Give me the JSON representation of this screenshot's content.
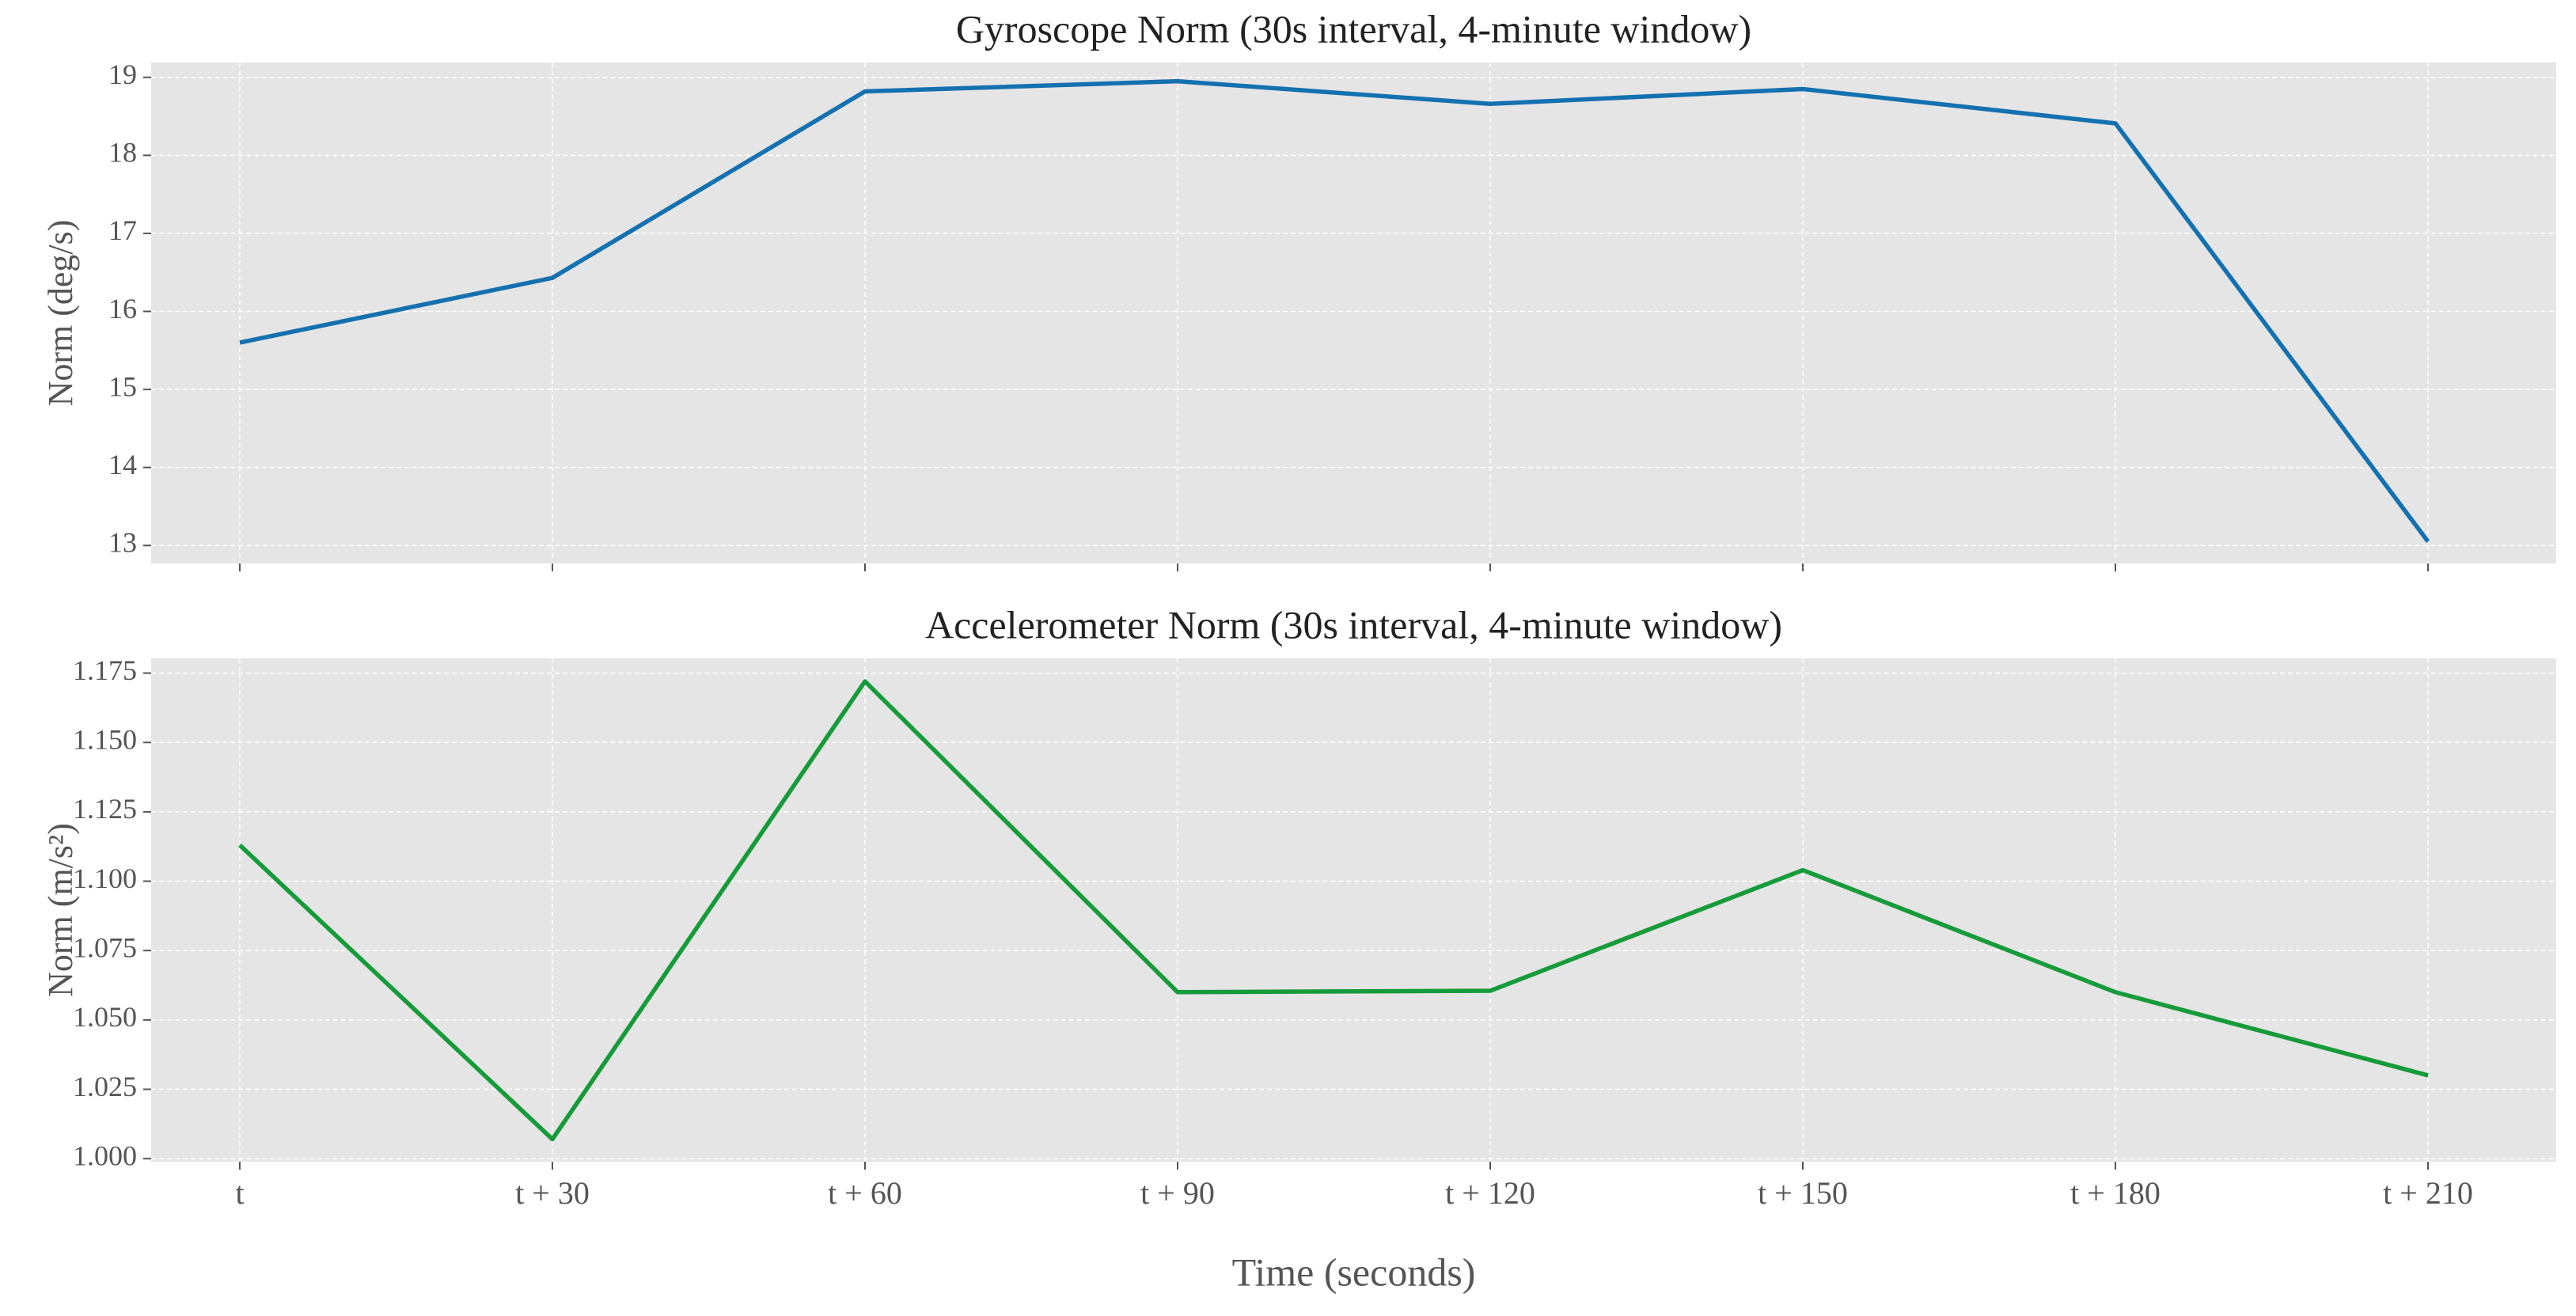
{
  "chart_data": [
    {
      "type": "line",
      "title": "Gyroscope Norm (30s interval, 4-minute window)",
      "ylabel": "Norm (deg/s)",
      "categories": [
        "t",
        "t + 30",
        "t + 60",
        "t + 90",
        "t + 120",
        "t + 150",
        "t + 180",
        "t + 210"
      ],
      "series": [
        {
          "color": "#1471b0",
          "values": [
            15.6,
            16.43,
            18.82,
            18.95,
            18.66,
            18.85,
            18.41,
            13.05
          ]
        }
      ],
      "ylim": [
        12.77,
        19.19
      ],
      "yticks": [
        13,
        14,
        15,
        16,
        17,
        18,
        19
      ],
      "grid": true,
      "show_xticklabels": false
    },
    {
      "type": "line",
      "title": "Accelerometer Norm (30s interval, 4-minute window)",
      "ylabel": "Norm (m/s²)",
      "xlabel": "Time (seconds)",
      "categories": [
        "t",
        "t + 30",
        "t + 60",
        "t + 90",
        "t + 120",
        "t + 150",
        "t + 180",
        "t + 210"
      ],
      "series": [
        {
          "color": "#169b3a",
          "values": [
            1.113,
            1.007,
            1.172,
            1.06,
            1.0605,
            1.104,
            1.06,
            1.03
          ]
        }
      ],
      "ylim": [
        0.9989,
        1.1803
      ],
      "yticks": [
        {
          "value": 1.0,
          "label": "1.000"
        },
        {
          "value": 1.025,
          "label": "1.025"
        },
        {
          "value": 1.05,
          "label": "1.050"
        },
        {
          "value": 1.075,
          "label": "1.075"
        },
        {
          "value": 1.1,
          "label": "1.100"
        },
        {
          "value": 1.125,
          "label": "1.125"
        },
        {
          "value": 1.15,
          "label": "1.150"
        },
        {
          "value": 1.175,
          "label": "1.175"
        }
      ],
      "grid": true,
      "show_xticklabels": true
    }
  ]
}
